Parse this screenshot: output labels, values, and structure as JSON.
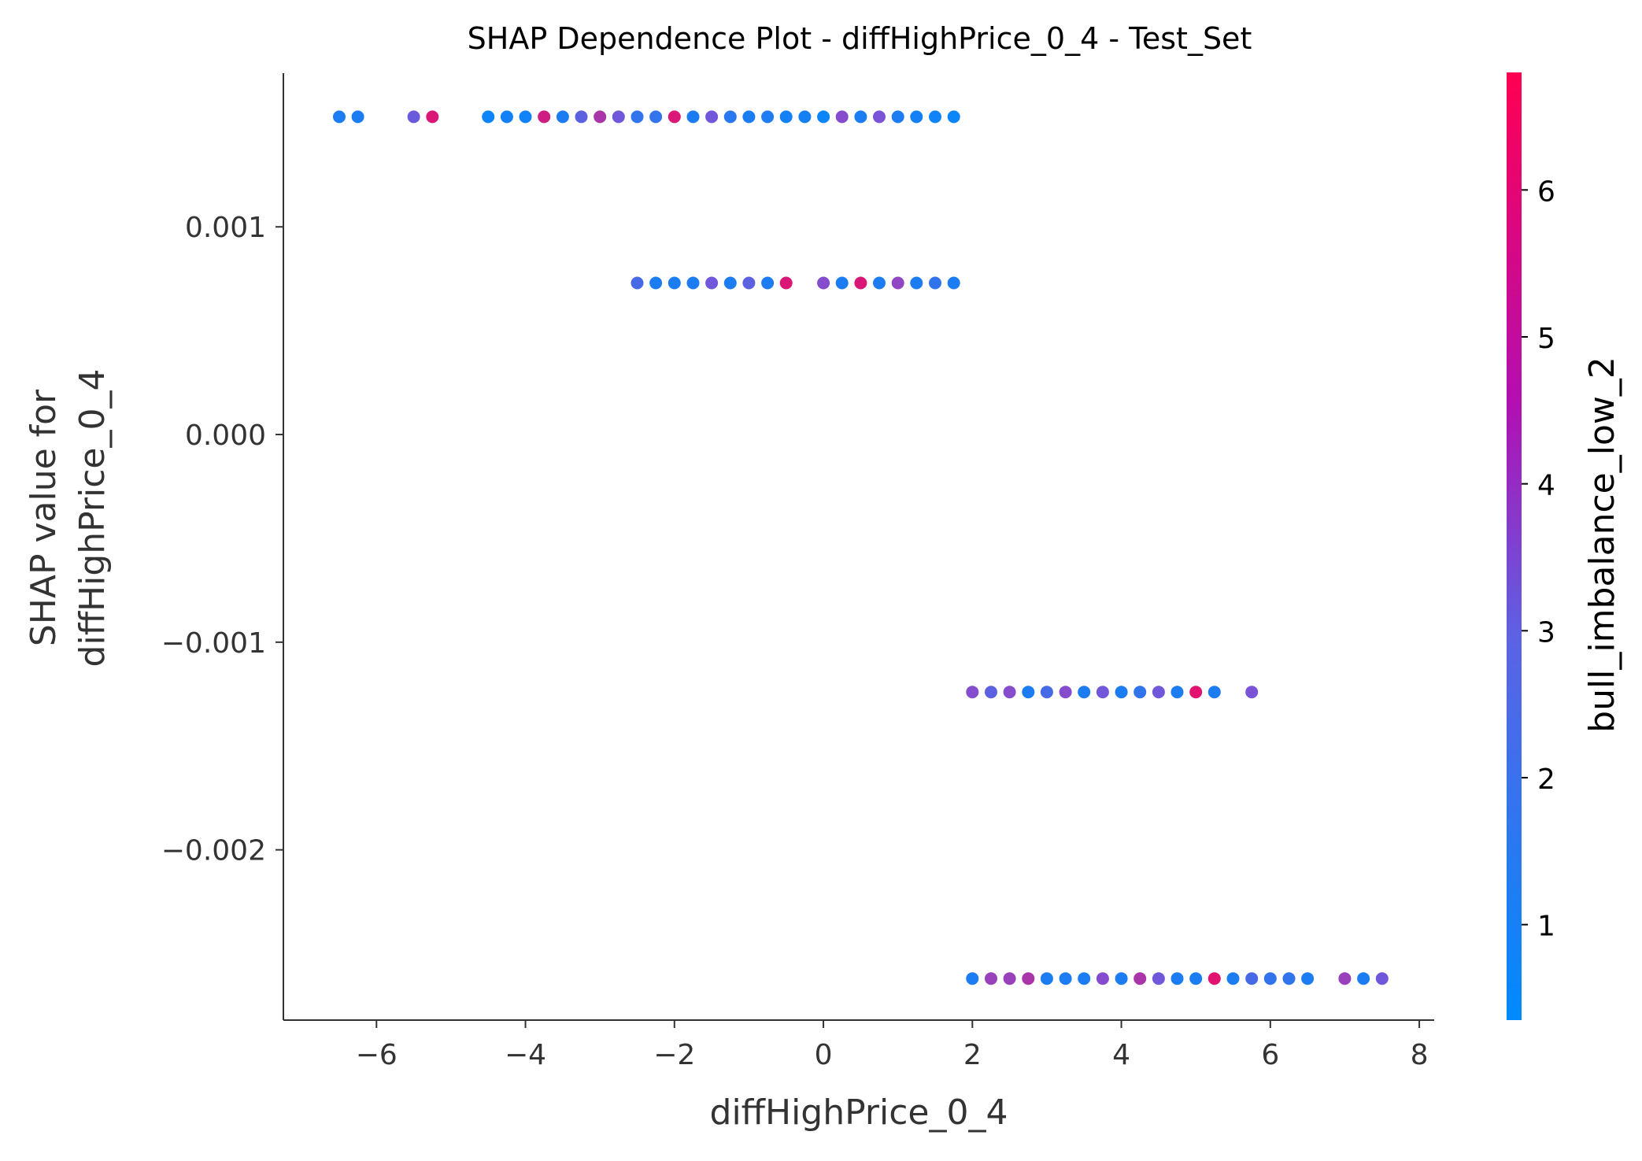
{
  "chart_data": {
    "type": "scatter",
    "title": "SHAP Dependence Plot - diffHighPrice_0_4 - Test_Set",
    "xlabel": "diffHighPrice_0_4",
    "ylabel_line1": "SHAP value for",
    "ylabel_line2": "diffHighPrice_0_4",
    "colorbar_label": "bull_imbalance_low_2",
    "xlim": [
      -7.25,
      8.2
    ],
    "ylim": [
      -0.00282,
      0.00174
    ],
    "x_ticks": [
      -6,
      -4,
      -2,
      0,
      2,
      4,
      6,
      8
    ],
    "x_tick_labels": [
      "−6",
      "−4",
      "−2",
      "0",
      "2",
      "4",
      "6",
      "8"
    ],
    "y_ticks": [
      0.001,
      0.0,
      -0.001,
      -0.002
    ],
    "y_tick_labels": [
      "0.001",
      "0.000",
      "−0.001",
      "−0.002"
    ],
    "colorbar_range": [
      0.35,
      6.8
    ],
    "colorbar_ticks": [
      1,
      2,
      3,
      4,
      5,
      6
    ],
    "colorbar_tick_labels": [
      "1",
      "2",
      "3",
      "4",
      "5",
      "6"
    ],
    "colors": {
      "low": "#008afb",
      "mid": "#7c52d6",
      "high": "#ff0052"
    },
    "series": [
      {
        "y": 0.00153,
        "x": [
          -6.5,
          -6.25,
          -5.5,
          -5.25,
          -4.5,
          -4.25,
          -4.0,
          -3.75,
          -3.5,
          -3.25,
          -3.0,
          -2.75,
          -2.5,
          -2.25,
          -2.0,
          -1.75,
          -1.5,
          -1.25,
          -1.0,
          -0.75,
          -0.5,
          -0.25,
          0.0,
          0.25,
          0.5,
          0.75,
          1.0,
          1.25,
          1.5,
          1.75
        ],
        "c": [
          1.0,
          1.0,
          2.8,
          5.8,
          0.6,
          0.8,
          0.7,
          5.5,
          1.0,
          2.5,
          4.5,
          3.0,
          1.5,
          1.5,
          5.8,
          1.0,
          3.0,
          1.3,
          1.0,
          1.1,
          0.8,
          0.9,
          0.6,
          3.5,
          1.0,
          3.2,
          1.0,
          0.8,
          0.7,
          0.6
        ]
      },
      {
        "y": 0.00073,
        "x": [
          -2.5,
          -2.25,
          -2.0,
          -1.75,
          -1.5,
          -1.25,
          -1.0,
          -0.75,
          -0.5,
          0.0,
          0.25,
          0.5,
          0.75,
          1.0,
          1.25,
          1.5,
          1.75
        ],
        "c": [
          2.0,
          1.0,
          1.0,
          1.0,
          3.0,
          1.0,
          2.5,
          1.0,
          5.8,
          3.5,
          1.0,
          5.8,
          1.0,
          3.8,
          1.0,
          1.5,
          1.0
        ]
      },
      {
        "y": -0.00124,
        "x": [
          2.0,
          2.25,
          2.5,
          2.75,
          3.0,
          3.25,
          3.5,
          3.75,
          4.0,
          4.25,
          4.5,
          4.75,
          5.0,
          5.25,
          5.75
        ],
        "c": [
          3.5,
          2.5,
          3.5,
          1.0,
          2.0,
          3.5,
          1.0,
          3.0,
          1.0,
          1.5,
          3.0,
          1.0,
          6.0,
          1.0,
          3.2
        ]
      },
      {
        "y": -0.00262,
        "x": [
          2.0,
          2.25,
          2.5,
          2.75,
          3.0,
          3.25,
          3.5,
          3.75,
          4.0,
          4.25,
          4.5,
          4.75,
          5.0,
          5.25,
          5.5,
          5.75,
          6.0,
          6.25,
          6.5,
          7.0,
          7.25,
          7.5
        ],
        "c": [
          1.0,
          4.0,
          4.0,
          4.5,
          1.0,
          1.0,
          1.0,
          3.5,
          1.0,
          4.5,
          3.0,
          1.0,
          1.0,
          6.0,
          1.0,
          2.0,
          1.5,
          1.5,
          1.0,
          4.0,
          1.0,
          3.0
        ]
      }
    ]
  }
}
